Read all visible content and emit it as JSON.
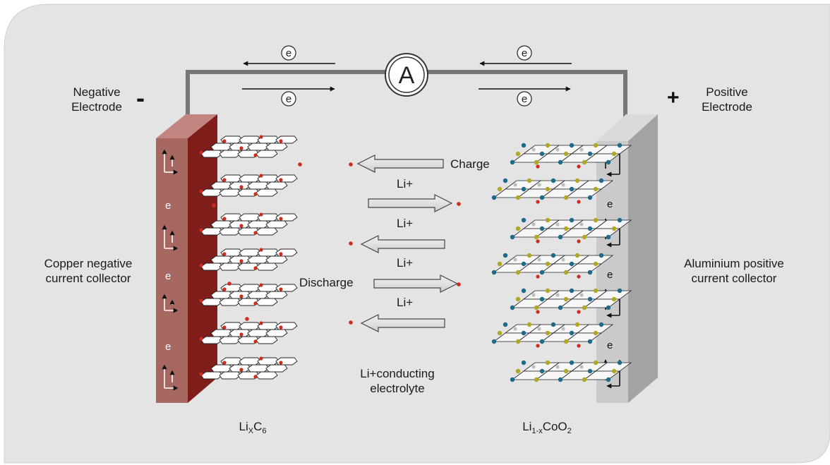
{
  "labels": {
    "neg_electrode": "Negative\nElectrode",
    "neg_sign": "-",
    "pos_electrode": "Positive\nElectrode",
    "pos_sign": "+",
    "copper": "Copper negative\ncurrent collector",
    "aluminium": "Aluminium positive\ncurrent collector",
    "charge": "Charge",
    "discharge": "Discharge",
    "li_plus": "Li+",
    "electrolyte": "Li+conducting\nelectrolyte",
    "ammeter": "A",
    "electron": "e",
    "anode_formula": {
      "main": "Li",
      "sub1": "X",
      "mid": "C",
      "sub2": "6"
    },
    "cathode_formula": {
      "main": "Li",
      "sub1": "1-x",
      "mid": "CoO",
      "sub2": "2"
    }
  },
  "colors": {
    "background": "#e4e4e4",
    "wire": "#777777",
    "copper_front": "#a86862",
    "copper_side": "#7f1d1a",
    "aluminium_front": "#c9cac9",
    "aluminium_side": "#a3a3a3",
    "lithium_ion": "#cc2b1e",
    "cobalt": "#1d6a8a",
    "oxygen": "#b0a722",
    "arrow_fill": "#dcdcdc"
  }
}
